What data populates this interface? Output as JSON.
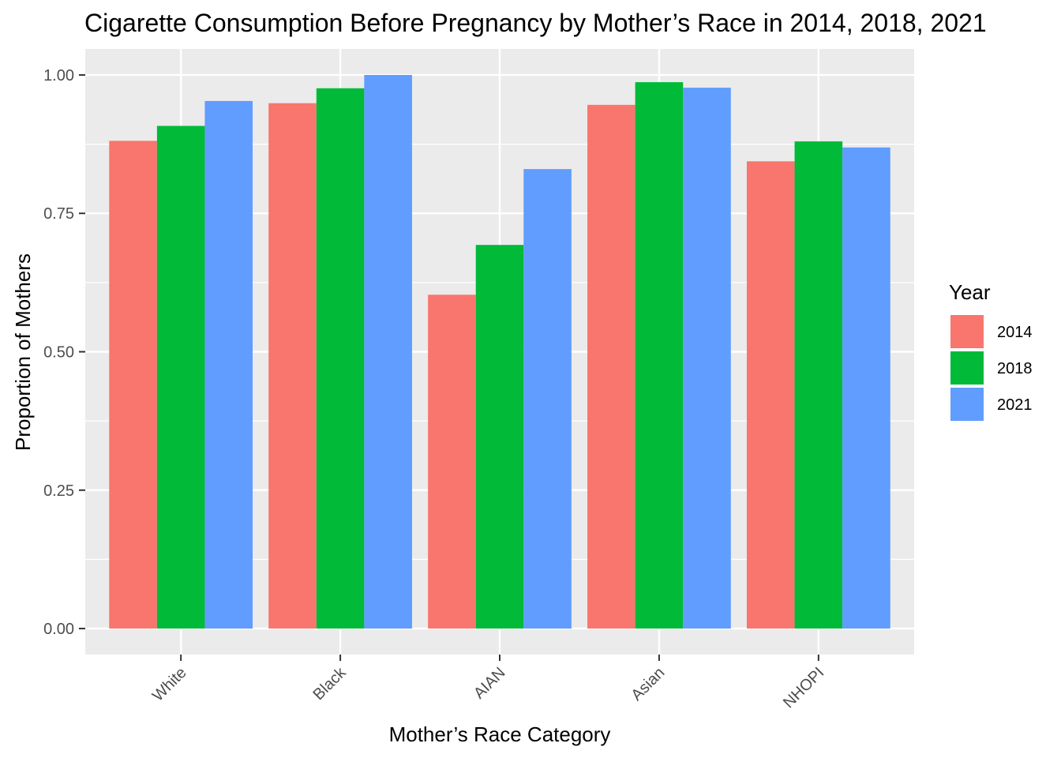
{
  "chart_data": {
    "type": "bar",
    "title": "Cigarette Consumption Before Pregnancy by Mother’s Race in 2014, 2018, 2021",
    "xlabel": "Mother’s Race Category",
    "ylabel": "Proportion of Mothers",
    "categories": [
      "White",
      "Black",
      "AIAN",
      "Asian",
      "NHOPI"
    ],
    "series": [
      {
        "name": "2014",
        "color": "#F8766D",
        "values": [
          0.881,
          0.949,
          0.603,
          0.946,
          0.844
        ]
      },
      {
        "name": "2018",
        "color": "#00BA38",
        "values": [
          0.908,
          0.976,
          0.693,
          0.987,
          0.88
        ]
      },
      {
        "name": "2021",
        "color": "#619CFF",
        "values": [
          0.953,
          1.0,
          0.83,
          0.977,
          0.869
        ]
      }
    ],
    "ylim": [
      -0.047,
      1.047
    ],
    "yticks": [
      0.0,
      0.25,
      0.5,
      0.75,
      1.0
    ],
    "ytick_labels": [
      "0.00",
      "0.25",
      "0.50",
      "0.75",
      "1.00"
    ],
    "legend_title": "Year",
    "legend_position": "right",
    "grid": true,
    "panel_background": "#EBEBEB",
    "grid_color": "#FFFFFF"
  }
}
